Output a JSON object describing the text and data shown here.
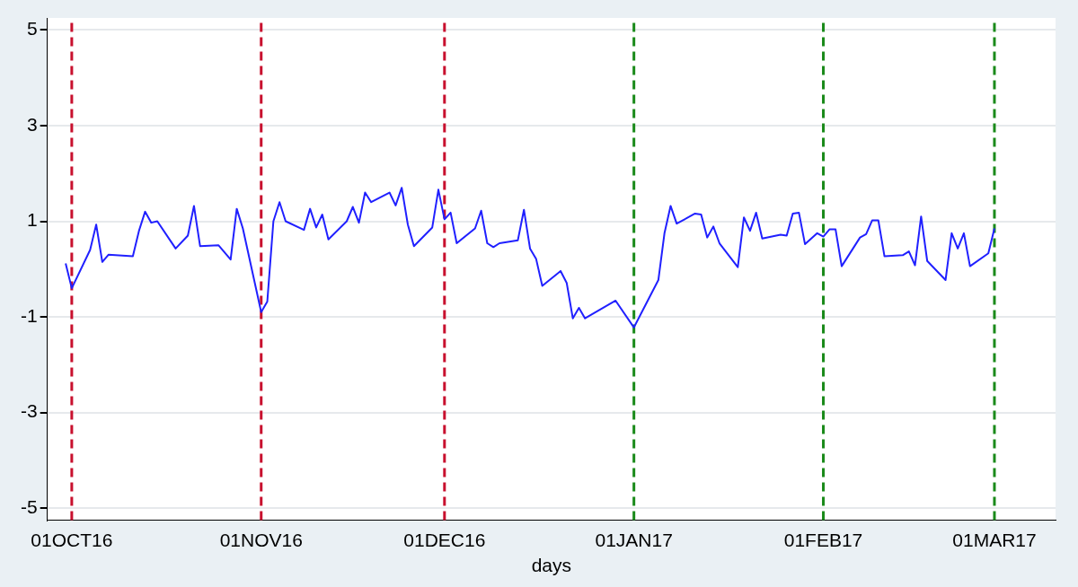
{
  "chart_data": {
    "type": "line",
    "xlabel": "days",
    "xlim": [
      "2016-09-27",
      "2017-03-11"
    ],
    "xticks": [
      {
        "value": "2016-10-01",
        "label": "01OCT16"
      },
      {
        "value": "2016-11-01",
        "label": "01NOV16"
      },
      {
        "value": "2016-12-01",
        "label": "01DEC16"
      },
      {
        "value": "2017-01-01",
        "label": "01JAN17"
      },
      {
        "value": "2017-02-01",
        "label": "01FEB17"
      },
      {
        "value": "2017-03-01",
        "label": "01MAR17"
      }
    ],
    "ylim": [
      -5.25,
      5.25
    ],
    "yticks": [
      -5,
      -3,
      -1,
      1,
      3,
      5
    ],
    "grid": "y",
    "legend": false,
    "marker": "none",
    "line_style": "solid",
    "series": [
      {
        "color": "#2020ff",
        "x": [
          "2016-09-30",
          "2016-10-01",
          "2016-10-04",
          "2016-10-05",
          "2016-10-06",
          "2016-10-07",
          "2016-10-11",
          "2016-10-12",
          "2016-10-13",
          "2016-10-14",
          "2016-10-15",
          "2016-10-18",
          "2016-10-20",
          "2016-10-21",
          "2016-10-22",
          "2016-10-25",
          "2016-10-27",
          "2016-10-28",
          "2016-10-29",
          "2016-11-01",
          "2016-11-02",
          "2016-11-03",
          "2016-11-04",
          "2016-11-05",
          "2016-11-08",
          "2016-11-09",
          "2016-11-10",
          "2016-11-11",
          "2016-11-12",
          "2016-11-15",
          "2016-11-16",
          "2016-11-17",
          "2016-11-18",
          "2016-11-19",
          "2016-11-22",
          "2016-11-23",
          "2016-11-24",
          "2016-11-25",
          "2016-11-26",
          "2016-11-29",
          "2016-11-30",
          "2016-12-01",
          "2016-12-02",
          "2016-12-03",
          "2016-12-06",
          "2016-12-07",
          "2016-12-08",
          "2016-12-09",
          "2016-12-10",
          "2016-12-13",
          "2016-12-14",
          "2016-12-15",
          "2016-12-16",
          "2016-12-17",
          "2016-12-20",
          "2016-12-21",
          "2016-12-22",
          "2016-12-23",
          "2016-12-24",
          "2016-12-29",
          "2017-01-01",
          "2017-01-05",
          "2017-01-06",
          "2017-01-07",
          "2017-01-08",
          "2017-01-11",
          "2017-01-12",
          "2017-01-13",
          "2017-01-14",
          "2017-01-15",
          "2017-01-18",
          "2017-01-19",
          "2017-01-20",
          "2017-01-21",
          "2017-01-22",
          "2017-01-25",
          "2017-01-26",
          "2017-01-27",
          "2017-01-28",
          "2017-01-29",
          "2017-01-31",
          "2017-02-01",
          "2017-02-02",
          "2017-02-03",
          "2017-02-04",
          "2017-02-07",
          "2017-02-08",
          "2017-02-09",
          "2017-02-10",
          "2017-02-11",
          "2017-02-14",
          "2017-02-15",
          "2017-02-16",
          "2017-02-17",
          "2017-02-18",
          "2017-02-21",
          "2017-02-22",
          "2017-02-23",
          "2017-02-24",
          "2017-02-25",
          "2017-02-28",
          "2017-03-01"
        ],
        "values": [
          0.12,
          -0.4,
          0.4,
          0.93,
          0.15,
          0.3,
          0.27,
          0.8,
          1.2,
          0.97,
          1.0,
          0.43,
          0.7,
          1.32,
          0.48,
          0.5,
          0.2,
          1.26,
          0.85,
          -0.9,
          -0.68,
          1.0,
          1.4,
          1.0,
          0.82,
          1.26,
          0.87,
          1.14,
          0.62,
          1.0,
          1.3,
          0.97,
          1.6,
          1.4,
          1.6,
          1.33,
          1.7,
          0.93,
          0.48,
          0.87,
          1.66,
          1.04,
          1.18,
          0.54,
          0.85,
          1.22,
          0.54,
          0.46,
          0.54,
          0.6,
          1.24,
          0.43,
          0.21,
          -0.35,
          -0.04,
          -0.29,
          -1.03,
          -0.81,
          -1.03,
          -0.66,
          -1.22,
          -0.23,
          0.75,
          1.32,
          0.95,
          1.16,
          1.14,
          0.66,
          0.89,
          0.54,
          0.04,
          1.08,
          0.8,
          1.18,
          0.64,
          0.72,
          0.7,
          1.16,
          1.18,
          0.52,
          0.75,
          0.68,
          0.83,
          0.83,
          0.06,
          0.66,
          0.73,
          1.02,
          1.02,
          0.27,
          0.29,
          0.37,
          0.08,
          1.1,
          0.17,
          -0.23,
          0.75,
          0.43,
          0.75,
          0.06,
          0.33,
          0.85
        ]
      }
    ],
    "ref_lines": [
      {
        "axis": "x",
        "value": "2016-10-01",
        "color": "#c8102e",
        "line_style": "dashed"
      },
      {
        "axis": "x",
        "value": "2016-11-01",
        "color": "#c8102e",
        "line_style": "dashed"
      },
      {
        "axis": "x",
        "value": "2016-12-01",
        "color": "#c8102e",
        "line_style": "dashed"
      },
      {
        "axis": "x",
        "value": "2017-01-01",
        "color": "#1a8a1a",
        "line_style": "dashed"
      },
      {
        "axis": "x",
        "value": "2017-02-01",
        "color": "#1a8a1a",
        "line_style": "dashed"
      },
      {
        "axis": "x",
        "value": "2017-03-01",
        "color": "#1a8a1a",
        "line_style": "dashed"
      }
    ]
  }
}
